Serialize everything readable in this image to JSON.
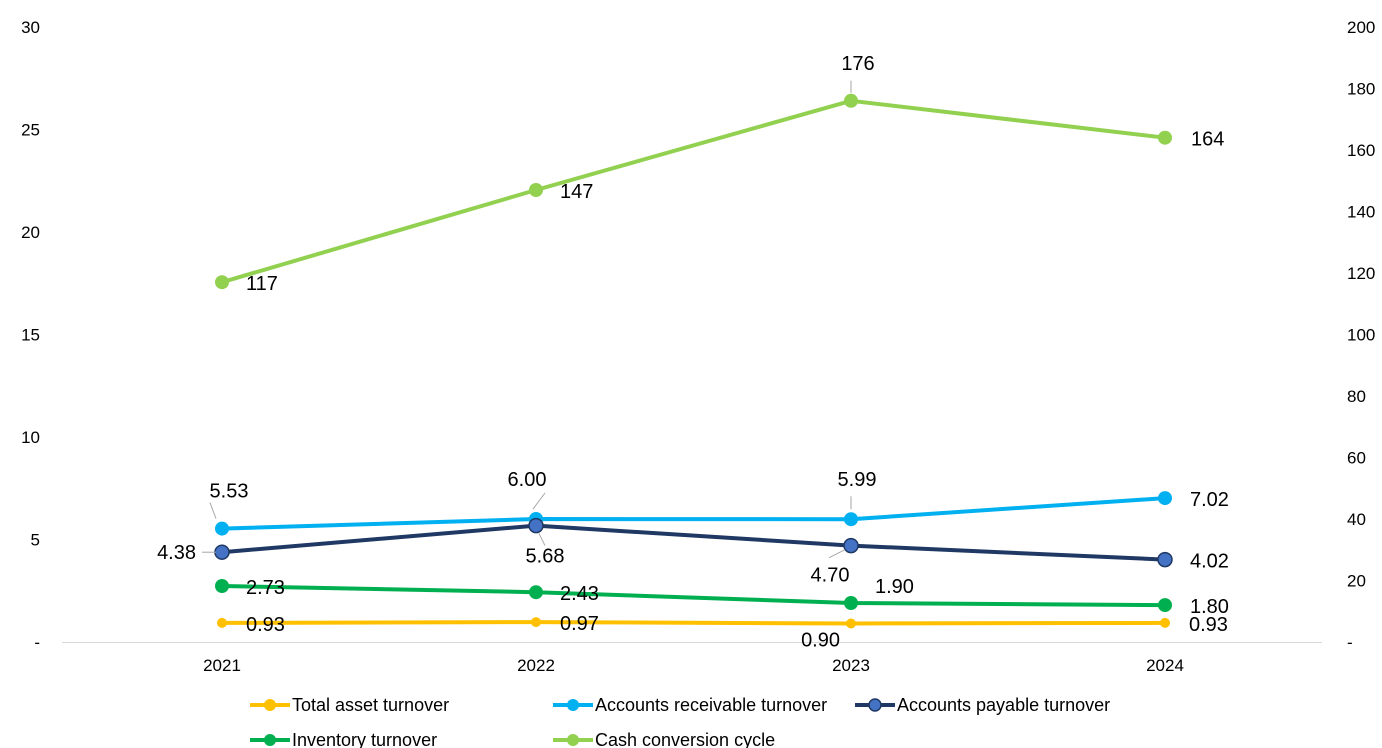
{
  "chart_data": {
    "type": "line",
    "title": "",
    "x": [
      "2021",
      "2022",
      "2023",
      "2024"
    ],
    "y_left": {
      "ylim": [
        0,
        30
      ],
      "ticks": [
        "-",
        "5",
        "10",
        "15",
        "20",
        "25",
        "30"
      ]
    },
    "y_right": {
      "ylim": [
        0,
        200
      ],
      "ticks": [
        "-",
        "20",
        "40",
        "60",
        "80",
        "100",
        "120",
        "140",
        "160",
        "180",
        "200"
      ]
    },
    "grid": false,
    "legend_position": "bottom",
    "series": [
      {
        "name": "Total asset turnover",
        "axis": "left",
        "color": "#FFC000",
        "values": [
          0.93,
          0.97,
          0.9,
          0.93
        ],
        "labels": [
          "0.93",
          "0.97",
          "0.90",
          "0.93"
        ]
      },
      {
        "name": "Accounts receivable turnover",
        "axis": "left",
        "color": "#00B0F0",
        "values": [
          5.53,
          6.0,
          5.99,
          7.02
        ],
        "labels": [
          "5.53",
          "6.00",
          "5.99",
          "7.02"
        ]
      },
      {
        "name": "Accounts payable turnover",
        "axis": "left",
        "color": "#1F3864",
        "marker_fill": "#4472C4",
        "values": [
          4.38,
          5.68,
          4.7,
          4.02
        ],
        "labels": [
          "4.38",
          "5.68",
          "4.70",
          "4.02"
        ]
      },
      {
        "name": "Inventory turnover",
        "axis": "left",
        "color": "#00B050",
        "values": [
          2.73,
          2.43,
          1.9,
          1.8
        ],
        "labels": [
          "2.73",
          "2.43",
          "1.90",
          "1.80"
        ]
      },
      {
        "name": "Cash conversion cycle",
        "axis": "right",
        "color": "#92D050",
        "values": [
          117,
          147,
          176,
          164
        ],
        "labels": [
          "117",
          "147",
          "176",
          "164"
        ]
      }
    ]
  }
}
